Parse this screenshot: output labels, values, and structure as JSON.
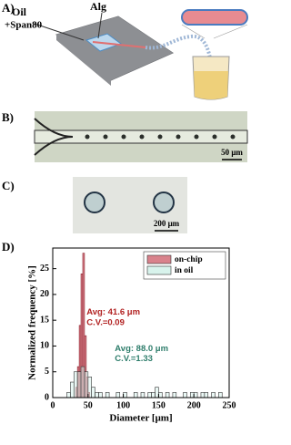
{
  "panels": {
    "a": {
      "label": "A)",
      "oil": "Oil",
      "span": "+Span80",
      "alg": "Alg"
    },
    "b": {
      "label": "B)",
      "scale": "50 μm"
    },
    "c": {
      "label": "C)",
      "scale": "200 μm"
    },
    "d": {
      "label": "D)"
    }
  },
  "chart_data": {
    "type": "histogram",
    "xlabel": "Diameter [μm]",
    "ylabel": "Normalized frequency [%]",
    "xlim": [
      0,
      250
    ],
    "xticks": [
      0,
      50,
      100,
      150,
      200,
      250
    ],
    "ylim": [
      0,
      29
    ],
    "yticks": [
      0,
      5,
      10,
      15,
      20,
      25
    ],
    "legend": "upper right",
    "series": [
      {
        "name": "on-chip",
        "color": "#d9828c",
        "bins": [
          32.5,
          35,
          37.5,
          40,
          42.5,
          45,
          47.5,
          50,
          52.5
        ],
        "values": [
          2,
          6,
          14,
          24,
          28,
          12,
          4,
          1
        ]
      },
      {
        "name": "in oil",
        "color": "#d8f3ec",
        "bins": [
          20,
          25,
          30,
          35,
          40,
          45,
          50,
          55,
          60,
          65,
          70,
          75,
          80,
          85,
          90,
          95,
          100,
          105,
          110,
          115,
          120,
          125,
          130,
          135,
          140,
          145,
          150,
          155,
          160,
          165,
          170,
          175,
          180,
          185,
          190,
          195,
          200,
          205,
          210,
          215,
          220,
          225,
          230,
          235,
          240,
          245
        ],
        "values": [
          1,
          3,
          5,
          5,
          6,
          5,
          4,
          2,
          1,
          1,
          0,
          1,
          0,
          0,
          1,
          0,
          1,
          0,
          0,
          1,
          0,
          1,
          0,
          1,
          1,
          2,
          1,
          0,
          1,
          0,
          1,
          0,
          0,
          1,
          0,
          1,
          1,
          0,
          1,
          1,
          0,
          1,
          0,
          1,
          0
        ]
      }
    ],
    "annotations": [
      {
        "text": "Avg: 41.6 μm",
        "color": "#b22222"
      },
      {
        "text": "C.V.=0.09",
        "color": "#b22222"
      },
      {
        "text": "Avg: 88.0 μm",
        "color": "#2e7d6b"
      },
      {
        "text": "C.V.=1.33",
        "color": "#2e7d6b"
      }
    ]
  }
}
